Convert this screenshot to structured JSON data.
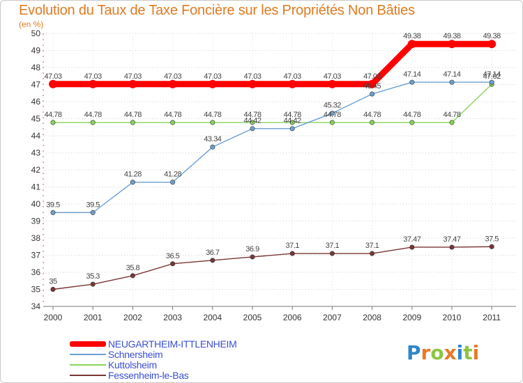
{
  "chart_data": {
    "type": "line",
    "title": "Evolution du Taux de Taxe Foncière sur les Propriétés Non Bâties",
    "subtitle": "(en %)",
    "x": [
      "2000",
      "2001",
      "2002",
      "2003",
      "2004",
      "2005",
      "2006",
      "2007",
      "2008",
      "2009",
      "2010",
      "2011"
    ],
    "ylim": [
      34,
      50
    ],
    "yticks": [
      "34",
      "35",
      "36",
      "37",
      "38",
      "39",
      "40",
      "41",
      "42",
      "43",
      "44",
      "45",
      "46",
      "47",
      "48",
      "49",
      "50"
    ],
    "grid": "horizontal-dotted",
    "legend_position": "bottom-left",
    "series": [
      {
        "name": "NEUGARTHEIM-ITTLENHEIM",
        "color": "#ff0000",
        "values": [
          47.03,
          47.03,
          47.03,
          47.03,
          47.03,
          47.03,
          47.03,
          47.03,
          47.03,
          49.38,
          49.38,
          49.38
        ],
        "labels": [
          "47.03",
          "47.03",
          "47.03",
          "47.03",
          "47.03",
          "47.03",
          "47.03",
          "47.03",
          "47.03",
          "49.38",
          "49.38",
          "49.38"
        ]
      },
      {
        "name": "Schnersheim",
        "color": "#6c9fd0",
        "values": [
          39.5,
          39.5,
          41.28,
          41.28,
          43.34,
          44.42,
          44.42,
          45.32,
          46.45,
          47.14,
          47.14,
          47.14
        ],
        "labels": [
          "39.5",
          "39.5",
          "41.28",
          "41.28",
          "43.34",
          "44.42",
          "44.42",
          "45.32",
          "46.45",
          "47.14",
          "47.14",
          "47.14"
        ]
      },
      {
        "name": "Kuttolsheim",
        "color": "#88d45a",
        "values": [
          44.78,
          44.78,
          44.78,
          44.78,
          44.78,
          44.78,
          44.78,
          44.78,
          44.78,
          44.78,
          44.78,
          47.02
        ],
        "labels": [
          "44.78",
          "44.78",
          "44.78",
          "44.78",
          "44.78",
          "44.78",
          "44.78",
          "44.78",
          "44.78",
          "44.78",
          "44.78",
          "47.02"
        ]
      },
      {
        "name": "Fessenheim-le-Bas",
        "color": "#7a3535",
        "values": [
          35,
          35.3,
          35.8,
          36.5,
          36.7,
          36.9,
          37.1,
          37.1,
          37.1,
          37.47,
          37.47,
          37.5
        ],
        "labels": [
          "35",
          "35.3",
          "35.8",
          "36.5",
          "36.7",
          "36.9",
          "37.1",
          "37.1",
          "37.1",
          "37.47",
          "37.47",
          "37.5"
        ]
      }
    ]
  },
  "logo": {
    "text_chars": [
      "P",
      "r",
      "o",
      "x",
      "i",
      "t",
      "i"
    ],
    "colors": [
      "#2f86c8",
      "#e9792a",
      "#8cc63f",
      "#e9792a",
      "#2f86c8",
      "#8cc63f",
      "#e9792a"
    ]
  }
}
